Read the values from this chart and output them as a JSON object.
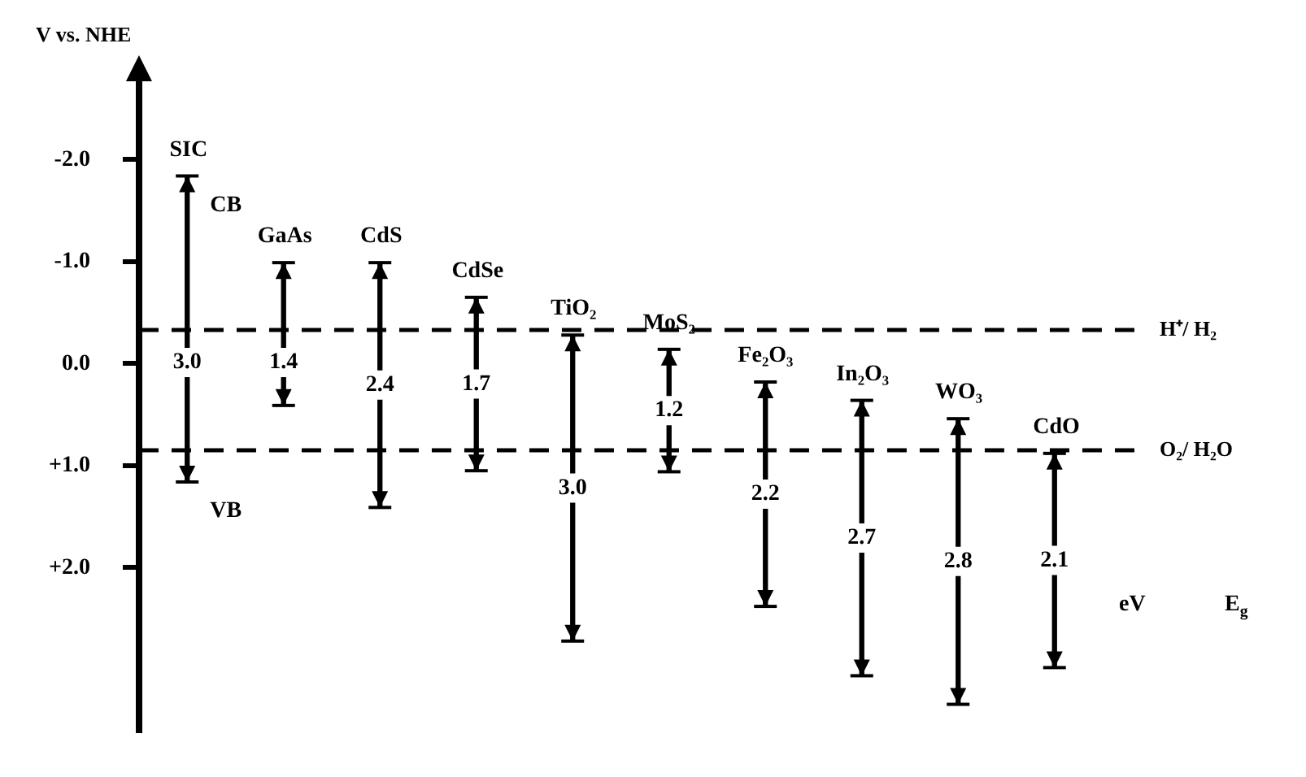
{
  "chart_data": {
    "type": "bar",
    "ylabel": "V vs. NHE",
    "categories": [
      "SIC",
      "GaAs",
      "CdS",
      "CdSe",
      "TiO₂",
      "MoS₂",
      "Fe₂O₃",
      "In₂O₃",
      "WO₃",
      "CdO"
    ],
    "base": [
      -1.84,
      -0.99,
      -0.99,
      -0.65,
      -0.28,
      -0.14,
      0.18,
      0.36,
      0.54,
      0.88
    ],
    "values": [
      3.0,
      1.4,
      2.4,
      1.7,
      3.0,
      1.2,
      2.2,
      2.7,
      2.8,
      2.1
    ],
    "value_labels": [
      "3.0",
      "1.4",
      "2.4",
      "1.7",
      "3.0",
      "1.2",
      "2.2",
      "2.7",
      "2.8",
      "2.1"
    ],
    "color": "#000000",
    "ylim": [
      3.6,
      -2.8
    ],
    "yticks": [
      {
        "value": -2,
        "label": "-2.0"
      },
      {
        "value": -1,
        "label": "-1.0"
      },
      {
        "value": 0,
        "label": "0.0"
      },
      {
        "value": 1,
        "label": "+1.0"
      },
      {
        "value": 2,
        "label": "+2.0"
      }
    ],
    "ref_lines": [
      {
        "axis": "y",
        "value": -0.33,
        "label": "H⁺/ H₂",
        "line_style": "dashed",
        "color": "#000000"
      },
      {
        "axis": "y",
        "value": 0.85,
        "label": "O₂/ H₂O",
        "line_style": "dashed",
        "color": "#000000"
      }
    ],
    "annotations": [
      {
        "text": "CB",
        "x": "SIC",
        "y": -1.84
      },
      {
        "text": "VB",
        "x": "SIC",
        "y": 1.16
      },
      "eV",
      "E$_{g}$"
    ],
    "grid": false,
    "legend": false,
    "tick_labels": "y"
  }
}
